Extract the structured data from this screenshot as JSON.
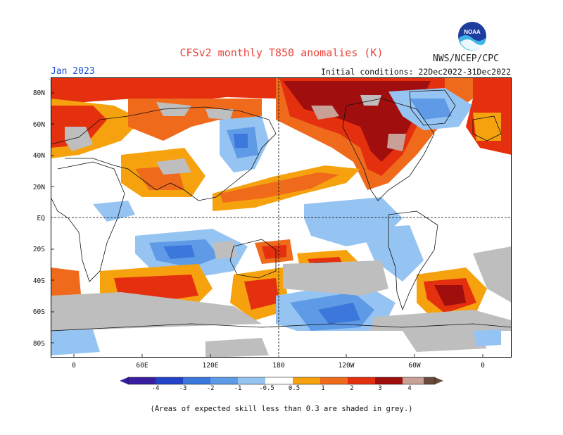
{
  "header": {
    "title": "CFSv2 monthly T850 anomalies (K)",
    "org": "NWS/NCEP/CPC",
    "month": "Jan 2023",
    "initial_conditions": "Initial conditions: 22Dec2022-31Dec2022",
    "logo_text": "NOAA"
  },
  "map": {
    "lat_labels": [
      "80N",
      "60N",
      "40N",
      "20N",
      "EQ",
      "20S",
      "40S",
      "60S",
      "80S"
    ],
    "lon_labels": [
      "0",
      "60E",
      "120E",
      "180",
      "120W",
      "60W",
      "0"
    ],
    "colors": {
      "grey": "#bebebe",
      "neg4": "#3a1ea0",
      "neg3": "#2344c8",
      "neg2": "#3c78dc",
      "neg1": "#5f9ae6",
      "neg05": "#96c4f2",
      "pos05": "#f5a20e",
      "pos1": "#f06a1c",
      "pos2": "#e4300e",
      "pos3": "#a00e0e",
      "pos4": "#c8a096",
      "pos5": "#6a4a3a"
    }
  },
  "colorbar": {
    "labels": [
      "-4",
      "-3",
      "-2",
      "-1",
      "-0.5",
      "0.5",
      "1",
      "2",
      "3",
      "4"
    ]
  },
  "footnote": "(Areas of expected skill less than 0.3 are shaded in grey.)"
}
